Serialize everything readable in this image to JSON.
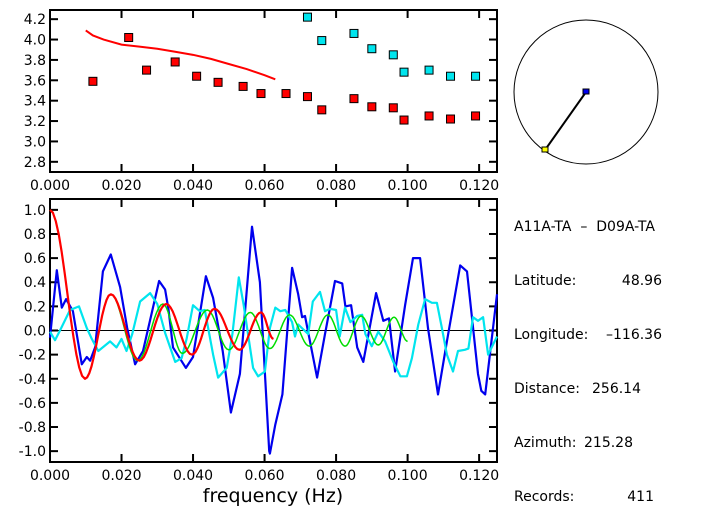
{
  "chart_data": [
    {
      "type": "scatter",
      "xlim": [
        0,
        0.125
      ],
      "ylim": [
        2.7,
        4.29
      ],
      "xticks": [
        "0.000",
        "0.020",
        "0.040",
        "0.060",
        "0.080",
        "0.100",
        "0.120"
      ],
      "yticks": [
        "2.8",
        "3.0",
        "3.2",
        "3.4",
        "3.6",
        "3.8",
        "4.0",
        "4.2"
      ],
      "colors": {
        "red_points": "#ff0000",
        "cyan_points": "#00e5ee",
        "curve": "#ff0000"
      },
      "series": [
        {
          "kind": "points",
          "color": "#ff0000",
          "points": [
            [
              0.012,
              3.59
            ],
            [
              0.022,
              4.02
            ],
            [
              0.027,
              3.7
            ],
            [
              0.035,
              3.78
            ],
            [
              0.041,
              3.64
            ],
            [
              0.047,
              3.58
            ],
            [
              0.054,
              3.54
            ],
            [
              0.059,
              3.47
            ],
            [
              0.066,
              3.47
            ],
            [
              0.072,
              3.44
            ],
            [
              0.076,
              3.31
            ],
            [
              0.085,
              3.42
            ],
            [
              0.09,
              3.34
            ],
            [
              0.096,
              3.33
            ],
            [
              0.099,
              3.21
            ],
            [
              0.106,
              3.25
            ],
            [
              0.112,
              3.22
            ],
            [
              0.119,
              3.25
            ]
          ]
        },
        {
          "kind": "points",
          "color": "#00e5ee",
          "points": [
            [
              0.072,
              4.22
            ],
            [
              0.076,
              3.99
            ],
            [
              0.085,
              4.06
            ],
            [
              0.09,
              3.91
            ],
            [
              0.096,
              3.85
            ],
            [
              0.099,
              3.68
            ],
            [
              0.106,
              3.7
            ],
            [
              0.112,
              3.64
            ],
            [
              0.119,
              3.64
            ]
          ]
        },
        {
          "kind": "line",
          "color": "#ff0000",
          "points": [
            [
              0.01,
              4.09
            ],
            [
              0.012,
              4.04
            ],
            [
              0.015,
              4.0
            ],
            [
              0.02,
              3.95
            ],
            [
              0.025,
              3.93
            ],
            [
              0.03,
              3.91
            ],
            [
              0.035,
              3.88
            ],
            [
              0.04,
              3.85
            ],
            [
              0.045,
              3.81
            ],
            [
              0.05,
              3.76
            ],
            [
              0.055,
              3.71
            ],
            [
              0.06,
              3.65
            ],
            [
              0.063,
              3.61
            ]
          ]
        }
      ]
    },
    {
      "type": "line",
      "xlim": [
        0,
        0.125
      ],
      "ylim": [
        -1.09,
        1.09
      ],
      "xlabel": "frequency (Hz)",
      "xticks": [
        "0.000",
        "0.020",
        "0.040",
        "0.060",
        "0.080",
        "0.100",
        "0.120"
      ],
      "yticks": [
        "-1.0",
        "-0.8",
        "-0.6",
        "-0.4",
        "-0.2",
        "0.0",
        "0.2",
        "0.4",
        "0.6",
        "0.8",
        "1.0"
      ],
      "series": [
        {
          "color": "#0000ee",
          "smooth": false,
          "points": [
            [
              0,
              -0.06
            ],
            [
              0.0019,
              0.5
            ],
            [
              0.0033,
              0.19
            ],
            [
              0.0045,
              0.26
            ],
            [
              0.0064,
              0.16
            ],
            [
              0.0089,
              -0.28
            ],
            [
              0.0103,
              -0.22
            ],
            [
              0.0112,
              -0.25
            ],
            [
              0.0126,
              -0.14
            ],
            [
              0.0148,
              0.49
            ],
            [
              0.017,
              0.63
            ],
            [
              0.0196,
              0.36
            ],
            [
              0.0216,
              0.02
            ],
            [
              0.0238,
              -0.28
            ],
            [
              0.026,
              -0.17
            ],
            [
              0.0305,
              0.41
            ],
            [
              0.0322,
              0.34
            ],
            [
              0.0331,
              0.18
            ],
            [
              0.0344,
              -0.14
            ],
            [
              0.038,
              -0.31
            ],
            [
              0.04,
              -0.22
            ],
            [
              0.0436,
              0.45
            ],
            [
              0.0456,
              0.27
            ],
            [
              0.0483,
              -0.17
            ],
            [
              0.0506,
              -0.68
            ],
            [
              0.0531,
              -0.36
            ],
            [
              0.0565,
              0.86
            ],
            [
              0.0587,
              0.4
            ],
            [
              0.0613,
              -1.0
            ],
            [
              0.0615,
              -1.02
            ],
            [
              0.063,
              -0.78
            ],
            [
              0.065,
              -0.53
            ],
            [
              0.0677,
              0.52
            ],
            [
              0.0694,
              0.3
            ],
            [
              0.0705,
              0.11
            ],
            [
              0.0713,
              0.12
            ],
            [
              0.0747,
              -0.39
            ],
            [
              0.0769,
              -0.03
            ],
            [
              0.0797,
              0.41
            ],
            [
              0.0817,
              0.39
            ],
            [
              0.0826,
              0.2
            ],
            [
              0.0842,
              0.21
            ],
            [
              0.0859,
              -0.14
            ],
            [
              0.0876,
              -0.26
            ],
            [
              0.0912,
              0.31
            ],
            [
              0.0932,
              0.08
            ],
            [
              0.0948,
              0.1
            ],
            [
              0.0965,
              -0.34
            ],
            [
              0.0993,
              0.21
            ],
            [
              0.1015,
              0.6
            ],
            [
              0.1035,
              0.6
            ],
            [
              0.1057,
              0.02
            ],
            [
              0.1085,
              -0.53
            ],
            [
              0.111,
              -0.09
            ],
            [
              0.1147,
              0.54
            ],
            [
              0.1166,
              0.49
            ],
            [
              0.1197,
              -0.36
            ],
            [
              0.1206,
              -0.5
            ],
            [
              0.1217,
              -0.53
            ],
            [
              0.125,
              0.3
            ]
          ]
        },
        {
          "color": "#00e5ee",
          "smooth": false,
          "points": [
            [
              0,
              -0.01
            ],
            [
              0.0014,
              -0.08
            ],
            [
              0.0028,
              0.0
            ],
            [
              0.0056,
              0.17
            ],
            [
              0.0081,
              0.2
            ],
            [
              0.0103,
              0.02
            ],
            [
              0.0117,
              -0.07
            ],
            [
              0.0135,
              -0.17
            ],
            [
              0.0168,
              -0.09
            ],
            [
              0.0186,
              -0.14
            ],
            [
              0.02,
              -0.07
            ],
            [
              0.0214,
              -0.17
            ],
            [
              0.023,
              -0.03
            ],
            [
              0.0252,
              0.24
            ],
            [
              0.028,
              0.31
            ],
            [
              0.03,
              0.22
            ],
            [
              0.0322,
              -0.02
            ],
            [
              0.035,
              -0.26
            ],
            [
              0.0368,
              -0.23
            ],
            [
              0.0382,
              -0.07
            ],
            [
              0.04,
              0.21
            ],
            [
              0.0419,
              0.16
            ],
            [
              0.0433,
              0.17
            ],
            [
              0.0456,
              -0.2
            ],
            [
              0.047,
              -0.39
            ],
            [
              0.0494,
              -0.31
            ],
            [
              0.051,
              -0.03
            ],
            [
              0.0528,
              0.44
            ],
            [
              0.0541,
              0.22
            ],
            [
              0.0568,
              -0.31
            ],
            [
              0.0582,
              -0.38
            ],
            [
              0.0601,
              -0.34
            ],
            [
              0.0615,
              0.02
            ],
            [
              0.063,
              0.19
            ],
            [
              0.0644,
              0.16
            ],
            [
              0.0658,
              0.17
            ],
            [
              0.0677,
              0.07
            ],
            [
              0.0685,
              -0.05
            ],
            [
              0.0694,
              0.05
            ],
            [
              0.0722,
              -0.03
            ],
            [
              0.0735,
              0.24
            ],
            [
              0.0755,
              0.32
            ],
            [
              0.0769,
              0.16
            ],
            [
              0.0783,
              0.18
            ],
            [
              0.08,
              0.17
            ],
            [
              0.081,
              -0.05
            ],
            [
              0.0825,
              0.19
            ],
            [
              0.084,
              0.07
            ],
            [
              0.0859,
              0.12
            ],
            [
              0.0873,
              0.13
            ],
            [
              0.0882,
              -0.03
            ],
            [
              0.09,
              -0.13
            ],
            [
              0.0918,
              -0.01
            ],
            [
              0.0937,
              -0.09
            ],
            [
              0.096,
              -0.26
            ],
            [
              0.098,
              -0.38
            ],
            [
              0.0998,
              -0.38
            ],
            [
              0.1012,
              -0.23
            ],
            [
              0.103,
              0.05
            ],
            [
              0.1049,
              0.26
            ],
            [
              0.1068,
              0.23
            ],
            [
              0.1082,
              0.23
            ],
            [
              0.1096,
              0.02
            ],
            [
              0.111,
              -0.2
            ],
            [
              0.1127,
              -0.34
            ],
            [
              0.1141,
              -0.17
            ],
            [
              0.116,
              -0.16
            ],
            [
              0.117,
              -0.15
            ],
            [
              0.1183,
              0.11
            ],
            [
              0.1197,
              0.08
            ],
            [
              0.1211,
              0.11
            ],
            [
              0.1225,
              -0.2
            ],
            [
              0.125,
              -0.05
            ]
          ]
        },
        {
          "color": "#00dd00",
          "smooth": true,
          "points": [
            [
              0,
              1.0
            ],
            [
              0.0098,
              -0.4
            ],
            [
              0.017,
              0.3
            ],
            [
              0.0245,
              -0.25
            ],
            [
              0.0316,
              0.22
            ],
            [
              0.037,
              -0.19
            ],
            [
              0.044,
              0.17
            ],
            [
              0.05,
              -0.16
            ],
            [
              0.056,
              0.15
            ],
            [
              0.0615,
              -0.15
            ],
            [
              0.067,
              0.13
            ],
            [
              0.0725,
              -0.13
            ],
            [
              0.0777,
              0.13
            ],
            [
              0.0825,
              -0.13
            ],
            [
              0.087,
              0.12
            ],
            [
              0.0918,
              -0.12
            ],
            [
              0.0962,
              0.11
            ],
            [
              0.1,
              -0.09
            ]
          ]
        },
        {
          "color": "#ff0000",
          "smooth": true,
          "points": [
            [
              0,
              1.0
            ],
            [
              0.0098,
              -0.4
            ],
            [
              0.017,
              0.3
            ],
            [
              0.025,
              -0.25
            ],
            [
              0.0325,
              0.22
            ],
            [
              0.0397,
              -0.2
            ],
            [
              0.046,
              0.18
            ],
            [
              0.053,
              -0.16
            ],
            [
              0.059,
              0.15
            ],
            [
              0.0625,
              -0.07
            ]
          ]
        }
      ]
    }
  ],
  "map": {
    "colors": {
      "station_a": "#0000ee",
      "station_b": "#ffff00"
    }
  },
  "info": {
    "pair": "A11A-TA  –  D09A-TA",
    "rows": [
      {
        "label": "Latitude:",
        "value": "48.96"
      },
      {
        "label": "Longitude:",
        "value": "–116.36"
      },
      {
        "label": "Distance:",
        "value": "256.14"
      },
      {
        "label": "Azimuth:",
        "value": "215.28"
      },
      {
        "label": "Records:",
        "value": "411"
      }
    ]
  }
}
